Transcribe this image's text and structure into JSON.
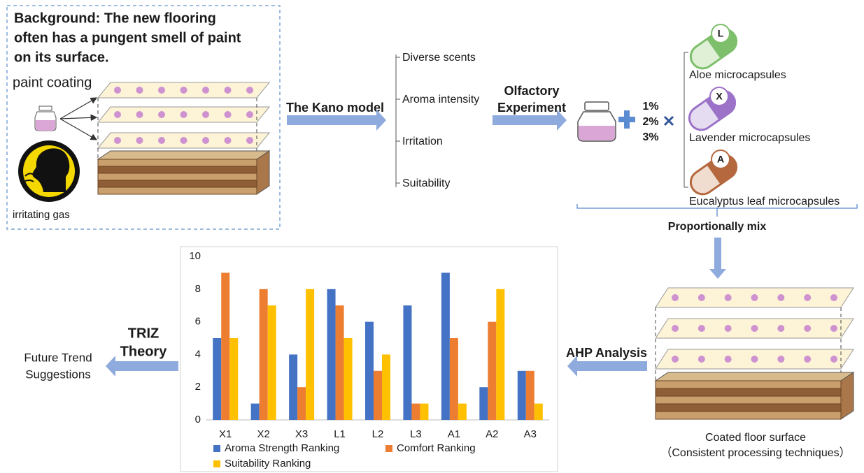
{
  "background": {
    "lines": [
      "Background: The new flooring",
      "often has a pungent smell of paint",
      "on its surface."
    ],
    "coating_label": "paint coating",
    "gas_label": "irritating gas"
  },
  "kano": {
    "title": "The Kano model",
    "items": [
      "Diverse scents",
      "Aroma intensity",
      "Irritation",
      "Suitability"
    ]
  },
  "olfactory": {
    "lines": [
      "Olfactory",
      "Experiment"
    ],
    "percentages": [
      "1%",
      "2%",
      "3%"
    ]
  },
  "microcapsules": [
    {
      "letter": "L",
      "label": "Aloe microcapsules"
    },
    {
      "letter": "X",
      "label": "Lavender microcapsules"
    },
    {
      "letter": "A",
      "label": "Eucalyptus leaf microcapsules"
    }
  ],
  "mix_label": "Proportionally mix",
  "floor": {
    "lines": [
      "Coated floor surface",
      "（Consistent processing techniques）"
    ]
  },
  "ahp_label": "AHP Analysis",
  "triz": {
    "lines": [
      "TRIZ",
      "Theory"
    ]
  },
  "future": {
    "lines": [
      "Future Trend",
      "Suggestions"
    ]
  },
  "chart_data": {
    "type": "bar",
    "categories": [
      "X1",
      "X2",
      "X3",
      "L1",
      "L2",
      "L3",
      "A1",
      "A2",
      "A3"
    ],
    "series": [
      {
        "name": "Aroma Strength Ranking",
        "color": "#4472c4",
        "values": [
          5,
          1,
          4,
          8,
          6,
          7,
          9,
          2,
          3
        ]
      },
      {
        "name": "Comfort Ranking",
        "color": "#ed7d31",
        "values": [
          9,
          8,
          2,
          7,
          3,
          1,
          5,
          6,
          3
        ]
      },
      {
        "name": "Suitability Ranking",
        "color": "#ffc000",
        "values": [
          5,
          7,
          8,
          5,
          4,
          1,
          1,
          8,
          1
        ]
      }
    ],
    "ylim": [
      0,
      10
    ],
    "yticks": [
      0,
      2,
      4,
      6,
      8,
      10
    ],
    "grid": false
  }
}
